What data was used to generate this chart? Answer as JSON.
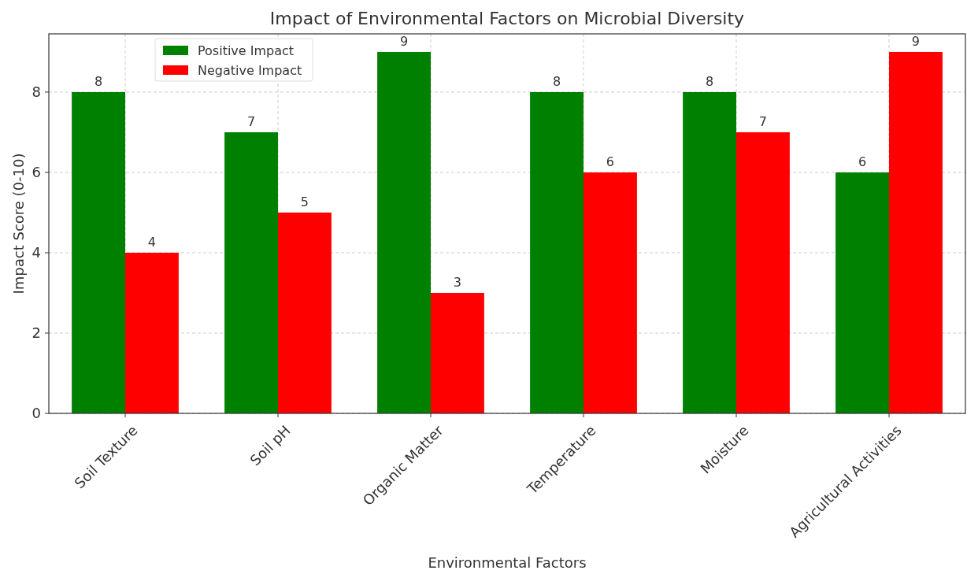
{
  "chart_data": {
    "type": "bar",
    "title": "Impact of Environmental Factors on Microbial Diversity",
    "xlabel": "Environmental Factors",
    "ylabel": "Impact Score (0-10)",
    "categories": [
      "Soil Texture",
      "Soil pH",
      "Organic Matter",
      "Temperature",
      "Moisture",
      "Agricultural Activities"
    ],
    "series": [
      {
        "name": "Positive Impact",
        "color": "#008000",
        "values": [
          8,
          7,
          9,
          8,
          8,
          6
        ]
      },
      {
        "name": "Negative Impact",
        "color": "#ff0000",
        "values": [
          4,
          5,
          3,
          6,
          7,
          9
        ]
      }
    ],
    "ylim": [
      0,
      9.45
    ],
    "yticks": [
      0,
      2,
      4,
      6,
      8
    ],
    "grid": true,
    "legend": "top left",
    "data_labels": true
  }
}
